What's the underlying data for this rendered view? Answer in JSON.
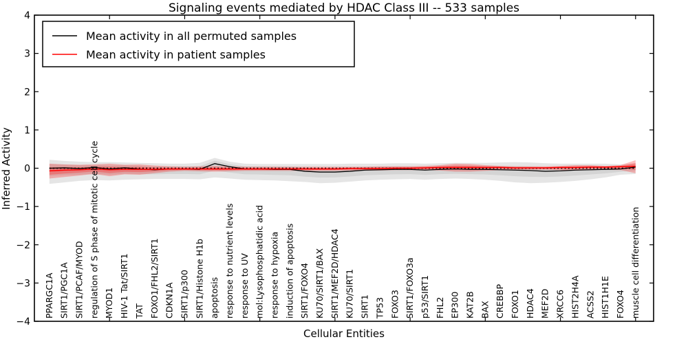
{
  "chart_data": {
    "type": "line",
    "title": "Signaling events mediated by HDAC Class III -- 533 samples",
    "xlabel": "Cellular Entities",
    "ylabel": "Inferred Activity",
    "ylim": [
      -4,
      4
    ],
    "yticks": [
      -4,
      -3,
      -2,
      -1,
      0,
      1,
      2,
      3,
      4
    ],
    "grid": false,
    "legend_position": "upper left",
    "zero_reference_line": {
      "y": 0,
      "style": "dotted",
      "color": "#000000"
    },
    "categories": [
      "PPARGC1A",
      "SIRT1/PGC1A",
      "SIRT1/PCAF/MYOD",
      "regulation of S phase of mitotic cell cycle",
      "MYOD1",
      "HIV-1 Tat/SIRT1",
      "TAT",
      "FOXO1/FHL2/SIRT1",
      "CDKN1A",
      "SIRT1/p300",
      "SIRT1/Histone H1b",
      "apoptosis",
      "response to nutrient levels",
      "response to UV",
      "mol:Lysophosphatidic acid",
      "response to hypoxia",
      "induction of apoptosis",
      "SIRT1/FOXO4",
      "KU70/SIRT1/BAX",
      "SIRT1/MEF2D/HDAC4",
      "KU70/SIRT1",
      "SIRT1",
      "TP53",
      "FOXO3",
      "SIRT1/FOXO3a",
      "p53/SIRT1",
      "FHL2",
      "EP300",
      "KAT2B",
      "BAX",
      "CREBBP",
      "FOXO1",
      "HDAC4",
      "MEF2D",
      "XRCC6",
      "HIST2H4A",
      "ACSS2",
      "HIST1H1E",
      "FOXO4",
      "muscle cell differentiation"
    ],
    "series": [
      {
        "name": "Mean activity in all permuted samples",
        "color": "#000000",
        "band_color": "#000000",
        "band_opacity": 0.1,
        "values": [
          0.0,
          0.01,
          -0.01,
          0.02,
          -0.02,
          0.01,
          -0.02,
          -0.04,
          -0.02,
          -0.02,
          -0.03,
          0.12,
          0.04,
          -0.02,
          -0.02,
          -0.03,
          -0.03,
          -0.08,
          -0.1,
          -0.1,
          -0.08,
          -0.05,
          -0.04,
          -0.03,
          -0.03,
          -0.05,
          -0.03,
          -0.02,
          -0.03,
          -0.03,
          -0.04,
          -0.05,
          -0.06,
          -0.08,
          -0.07,
          -0.05,
          -0.04,
          -0.03,
          -0.02,
          0.03
        ],
        "band_high": [
          0.22,
          0.19,
          0.17,
          0.16,
          0.16,
          0.15,
          0.14,
          0.13,
          0.12,
          0.12,
          0.14,
          0.27,
          0.17,
          0.12,
          0.11,
          0.11,
          0.11,
          0.11,
          0.11,
          0.11,
          0.12,
          0.12,
          0.12,
          0.13,
          0.13,
          0.12,
          0.13,
          0.14,
          0.14,
          0.14,
          0.15,
          0.16,
          0.15,
          0.13,
          0.12,
          0.12,
          0.12,
          0.12,
          0.1,
          0.13
        ],
        "band_low": [
          -0.41,
          -0.37,
          -0.33,
          -0.31,
          -0.32,
          -0.3,
          -0.29,
          -0.28,
          -0.28,
          -0.28,
          -0.29,
          -0.24,
          -0.27,
          -0.3,
          -0.31,
          -0.32,
          -0.34,
          -0.36,
          -0.39,
          -0.38,
          -0.35,
          -0.32,
          -0.3,
          -0.29,
          -0.28,
          -0.3,
          -0.28,
          -0.27,
          -0.28,
          -0.3,
          -0.33,
          -0.37,
          -0.39,
          -0.38,
          -0.36,
          -0.33,
          -0.29,
          -0.24,
          -0.17,
          -0.15
        ]
      },
      {
        "name": "Mean activity in patient samples",
        "color": "#ff0000",
        "band_color": "#ff0000",
        "band_opacity": 0.25,
        "values": [
          -0.07,
          -0.05,
          -0.04,
          -0.02,
          -0.04,
          -0.03,
          -0.03,
          -0.03,
          -0.02,
          -0.02,
          -0.02,
          -0.02,
          -0.02,
          -0.02,
          -0.02,
          -0.02,
          -0.02,
          -0.02,
          -0.02,
          -0.02,
          -0.01,
          -0.01,
          -0.01,
          0.0,
          0.0,
          0.01,
          0.02,
          0.02,
          0.02,
          0.02,
          0.02,
          0.01,
          0.01,
          0.01,
          0.02,
          0.02,
          0.03,
          0.03,
          0.04,
          0.05
        ],
        "band_high": [
          0.12,
          0.1,
          0.09,
          0.1,
          0.12,
          0.09,
          0.1,
          0.07,
          0.05,
          0.04,
          0.05,
          0.06,
          0.05,
          0.04,
          0.04,
          0.04,
          0.04,
          0.04,
          0.04,
          0.04,
          0.04,
          0.04,
          0.05,
          0.05,
          0.05,
          0.06,
          0.08,
          0.12,
          0.11,
          0.08,
          0.06,
          0.05,
          0.05,
          0.05,
          0.06,
          0.08,
          0.08,
          0.06,
          0.08,
          0.21
        ],
        "band_low": [
          -0.27,
          -0.23,
          -0.19,
          -0.15,
          -0.21,
          -0.16,
          -0.17,
          -0.13,
          -0.09,
          -0.07,
          -0.08,
          -0.09,
          -0.08,
          -0.07,
          -0.07,
          -0.07,
          -0.07,
          -0.07,
          -0.07,
          -0.07,
          -0.06,
          -0.06,
          -0.06,
          -0.05,
          -0.05,
          -0.05,
          -0.06,
          -0.09,
          -0.09,
          -0.07,
          -0.05,
          -0.04,
          -0.04,
          -0.04,
          -0.05,
          -0.06,
          -0.05,
          -0.04,
          -0.05,
          -0.13
        ]
      }
    ]
  }
}
